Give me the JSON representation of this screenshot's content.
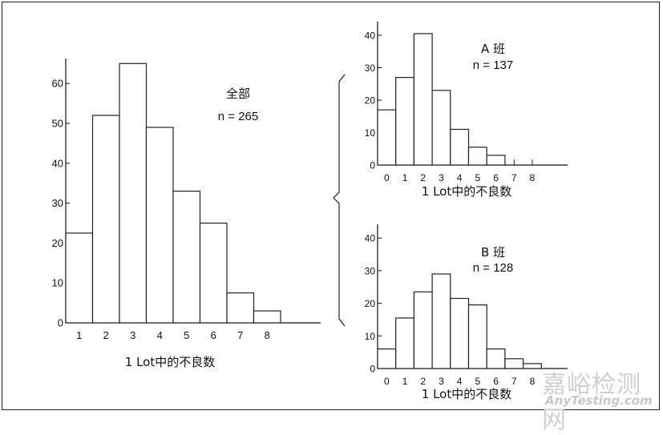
{
  "chart_data": [
    {
      "type": "bar",
      "name": "overall",
      "label_line1": "全部",
      "label_line2": "n = 265",
      "categories": [
        "1",
        "2",
        "3",
        "4",
        "5",
        "6",
        "7",
        "8"
      ],
      "values": [
        22.5,
        52,
        65,
        49,
        33,
        25,
        7.5,
        3
      ],
      "xlabel": "1 Lot中的不良数",
      "ylabel": "",
      "yticks": [
        0,
        10,
        20,
        30,
        40,
        50,
        60
      ],
      "ylim": [
        0,
        66
      ],
      "grid": false
    },
    {
      "type": "bar",
      "name": "team-a",
      "label_line1": "A  班",
      "label_line2": "n = 137",
      "categories": [
        "0",
        "1",
        "2",
        "3",
        "4",
        "5",
        "6",
        "7",
        "8"
      ],
      "values": [
        17,
        27,
        40.5,
        23,
        11,
        5.5,
        3,
        0,
        0
      ],
      "xlabel": "1 Lot中的不良数",
      "ylabel": "",
      "yticks": [
        0,
        10,
        20,
        30,
        40
      ],
      "ylim": [
        0,
        44
      ],
      "grid": false
    },
    {
      "type": "bar",
      "name": "team-b",
      "label_line1": "B  班",
      "label_line2": "n = 128",
      "categories": [
        "0",
        "1",
        "2",
        "3",
        "4",
        "5",
        "6",
        "7",
        "8"
      ],
      "values": [
        6,
        15.5,
        23.5,
        29,
        21.5,
        19.5,
        6,
        3,
        1.5
      ],
      "xlabel": "1 Lot中的不良数",
      "ylabel": "",
      "yticks": [
        0,
        10,
        20,
        30,
        40
      ],
      "ylim": [
        0,
        44
      ],
      "grid": false
    }
  ],
  "watermark": {
    "line1": "嘉峪检测网",
    "line2": "AnyTesting.com"
  }
}
